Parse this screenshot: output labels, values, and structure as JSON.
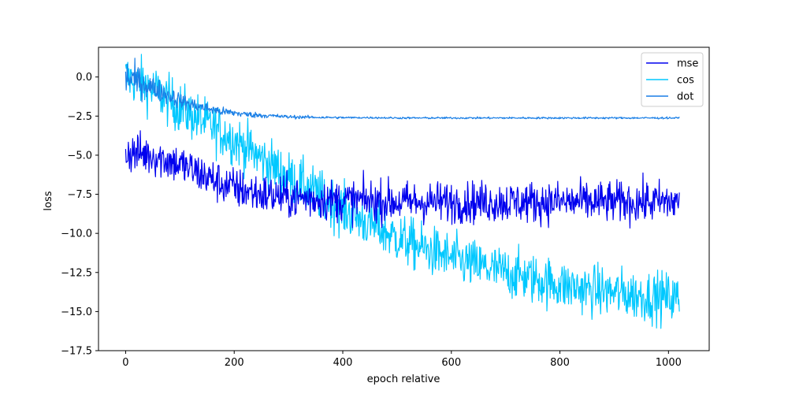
{
  "chart_data": {
    "type": "line",
    "title": "",
    "xlabel": "epoch relative",
    "ylabel": "loss",
    "xlim": [
      -50,
      1075
    ],
    "ylim": [
      -17.5,
      1.9
    ],
    "xticks": [
      0,
      200,
      400,
      600,
      800,
      1000
    ],
    "xtick_labels": [
      "0",
      "200",
      "400",
      "600",
      "800",
      "1000"
    ],
    "yticks": [
      0.0,
      -2.5,
      -5.0,
      -7.5,
      -10.0,
      -12.5,
      -15.0,
      -17.5
    ],
    "ytick_labels": [
      "0.0",
      "−2.5",
      "−5.0",
      "−7.5",
      "−10.0",
      "−12.5",
      "−15.0",
      "−17.5"
    ],
    "grid": false,
    "legend": {
      "position": "top-right",
      "entries": [
        "mse",
        "cos",
        "dot"
      ]
    },
    "series": [
      {
        "name": "mse",
        "color": "#0000ee",
        "x": [
          0,
          25,
          50,
          75,
          100,
          125,
          150,
          175,
          200,
          225,
          250,
          275,
          300,
          350,
          400,
          450,
          500,
          550,
          600,
          650,
          700,
          750,
          800,
          850,
          900,
          950,
          1000,
          1020
        ],
        "y": [
          -4.8,
          -4.9,
          -5.0,
          -5.3,
          -5.6,
          -6.0,
          -6.4,
          -6.8,
          -7.1,
          -7.3,
          -7.5,
          -7.6,
          -7.7,
          -7.8,
          -7.9,
          -7.9,
          -8.0,
          -8.0,
          -8.0,
          -8.0,
          -8.0,
          -8.0,
          -8.0,
          -8.0,
          -8.0,
          -8.0,
          -8.0,
          -8.0
        ],
        "noise": 0.95
      },
      {
        "name": "cos",
        "color": "#00c8ff",
        "x": [
          0,
          25,
          50,
          75,
          100,
          125,
          150,
          175,
          200,
          225,
          250,
          275,
          300,
          350,
          400,
          450,
          500,
          550,
          600,
          650,
          700,
          750,
          800,
          850,
          900,
          950,
          1000,
          1020
        ],
        "y": [
          0.0,
          -0.3,
          -0.8,
          -1.4,
          -2.0,
          -2.5,
          -3.0,
          -3.5,
          -4.0,
          -4.6,
          -5.2,
          -5.8,
          -6.4,
          -7.4,
          -8.5,
          -9.4,
          -10.3,
          -11.0,
          -11.6,
          -12.1,
          -12.5,
          -12.9,
          -13.3,
          -13.6,
          -13.8,
          -14.0,
          -14.1,
          -14.2
        ],
        "noise": 1.15
      },
      {
        "name": "dot",
        "color": "#1a7fe6",
        "x": [
          0,
          25,
          50,
          75,
          100,
          125,
          150,
          175,
          200,
          225,
          250,
          275,
          300,
          350,
          400,
          450,
          500,
          550,
          600,
          650,
          700,
          750,
          800,
          850,
          900,
          950,
          1000,
          1020
        ],
        "y": [
          0.0,
          -0.3,
          -0.7,
          -1.1,
          -1.5,
          -1.8,
          -2.0,
          -2.2,
          -2.3,
          -2.4,
          -2.45,
          -2.5,
          -2.55,
          -2.58,
          -2.6,
          -2.6,
          -2.62,
          -2.62,
          -2.62,
          -2.62,
          -2.62,
          -2.62,
          -2.62,
          -2.62,
          -2.62,
          -2.62,
          -2.62,
          -2.62
        ],
        "noise": 0.8,
        "noise_decay": true
      }
    ]
  }
}
